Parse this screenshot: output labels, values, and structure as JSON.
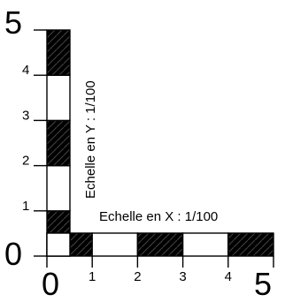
{
  "title_x": "Echelle en X : 1/100",
  "title_y": "Echelle en Y : 1/100",
  "x_axis": {
    "labels": [
      "0",
      "1",
      "2",
      "3",
      "4",
      "5"
    ],
    "segments": [
      "black",
      "white",
      "black",
      "white",
      "black"
    ]
  },
  "y_axis": {
    "labels": [
      "0",
      "1",
      "2",
      "3",
      "4",
      "5"
    ],
    "segments": [
      "black",
      "white",
      "black",
      "white",
      "black"
    ]
  },
  "colors": {
    "fill": "#000000",
    "hatch": "#ffffff",
    "background": "#ffffff",
    "stroke": "#000000"
  }
}
